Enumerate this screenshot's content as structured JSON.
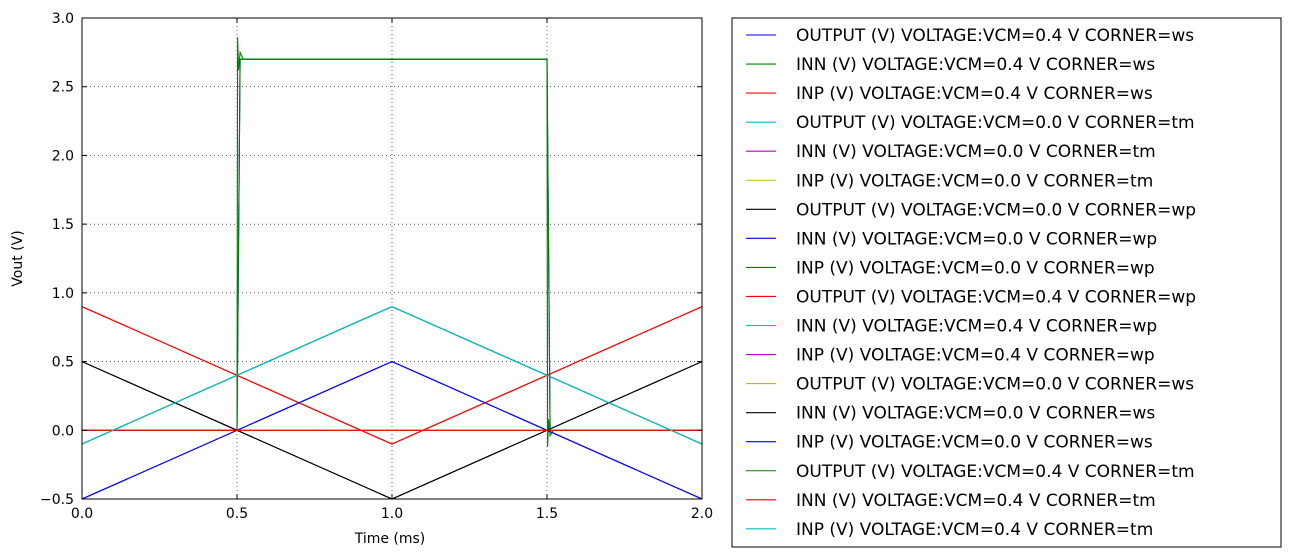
{
  "chart_data": {
    "type": "line",
    "xlabel": "Time (ms)",
    "ylabel": "Vout (V)",
    "xlim": [
      0.0,
      2.0
    ],
    "ylim": [
      -0.5,
      3.0
    ],
    "x_ticks": [
      "0.0",
      "0.5",
      "1.0",
      "1.5",
      "2.0"
    ],
    "x_tick_values": [
      0.0,
      0.5,
      1.0,
      1.5,
      2.0
    ],
    "y_ticks": [
      "−0.5",
      "0.0",
      "0.5",
      "1.0",
      "1.5",
      "2.0",
      "2.5",
      "3.0"
    ],
    "y_tick_values": [
      -0.5,
      0.0,
      0.5,
      1.0,
      1.5,
      2.0,
      2.5,
      3.0
    ],
    "grid": true,
    "legend_position": "outside-right",
    "series": [
      {
        "name": "OUTPUT (V) VOLTAGE:VCM=0.4 V CORNER=ws",
        "color": "#0000ff",
        "x": [
          0,
          0.5,
          0.51,
          1.5,
          1.51,
          2.0
        ],
        "y": [
          0.0,
          0.0,
          2.7,
          2.7,
          0.0,
          0.0
        ]
      },
      {
        "name": "INN (V) VOLTAGE:VCM=0.4 V CORNER=ws",
        "color": "#008000",
        "x": [
          0,
          0.5,
          0.502,
          0.505,
          0.51,
          0.52,
          1.5,
          1.502,
          1.505,
          1.51,
          1.52,
          2.0
        ],
        "y": [
          0.0,
          0.0,
          2.86,
          2.62,
          2.75,
          2.7,
          2.7,
          -0.12,
          0.08,
          -0.04,
          0.0,
          0.0
        ]
      },
      {
        "name": "INP (V) VOLTAGE:VCM=0.4 V CORNER=ws",
        "color": "#ff0000",
        "x": [
          0,
          1,
          2
        ],
        "y": [
          0.9,
          -0.1,
          0.9
        ]
      },
      {
        "name": "OUTPUT (V) VOLTAGE:VCM=0.0 V CORNER=tm",
        "color": "#00bfbf",
        "x": [
          0,
          1,
          2
        ],
        "y": [
          -0.1,
          0.9,
          -0.1
        ]
      },
      {
        "name": "INN (V) VOLTAGE:VCM=0.0 V CORNER=tm",
        "color": "#bf00bf",
        "x": [
          0,
          1,
          2
        ],
        "y": [
          -0.1,
          0.9,
          -0.1
        ]
      },
      {
        "name": "INP (V) VOLTAGE:VCM=0.0 V CORNER=tm",
        "color": "#bfbf00",
        "x": [
          0,
          1,
          2
        ],
        "y": [
          -0.1,
          0.9,
          -0.1
        ]
      },
      {
        "name": "OUTPUT (V) VOLTAGE:VCM=0.0 V CORNER=wp",
        "color": "#000000",
        "x": [
          0,
          1,
          2
        ],
        "y": [
          0.5,
          -0.5,
          0.5
        ]
      },
      {
        "name": "INN (V) VOLTAGE:VCM=0.0 V CORNER=wp",
        "color": "#0000ff",
        "x": [
          0,
          1,
          2
        ],
        "y": [
          -0.5,
          0.5,
          -0.5
        ]
      },
      {
        "name": "INP (V) VOLTAGE:VCM=0.0 V CORNER=wp",
        "color": "#008000",
        "x": [
          0,
          2
        ],
        "y": [
          0.0,
          0.0
        ]
      },
      {
        "name": "OUTPUT (V) VOLTAGE:VCM=0.4 V CORNER=wp",
        "color": "#ff0000",
        "x": [
          0,
          1,
          2
        ],
        "y": [
          0.9,
          -0.1,
          0.9
        ]
      },
      {
        "name": "INN (V) VOLTAGE:VCM=0.4 V CORNER=wp",
        "color": "#00bfbf",
        "x": [
          0,
          1,
          2
        ],
        "y": [
          -0.1,
          0.9,
          -0.1
        ]
      },
      {
        "name": "INP (V) VOLTAGE:VCM=0.4 V CORNER=wp",
        "color": "#bf00bf",
        "x": [
          0,
          2
        ],
        "y": [
          0.0,
          0.0
        ]
      },
      {
        "name": "OUTPUT (V) VOLTAGE:VCM=0.0 V CORNER=ws",
        "color": "#bfbf00",
        "x": [
          0,
          2
        ],
        "y": [
          0.0,
          0.0
        ]
      },
      {
        "name": "INN (V) VOLTAGE:VCM=0.0 V CORNER=ws",
        "color": "#000000",
        "x": [
          0,
          1,
          2
        ],
        "y": [
          0.5,
          -0.5,
          0.5
        ]
      },
      {
        "name": "INP (V) VOLTAGE:VCM=0.0 V CORNER=ws",
        "color": "#0000ff",
        "x": [
          0,
          1,
          2
        ],
        "y": [
          -0.5,
          0.5,
          -0.5
        ]
      },
      {
        "name": "OUTPUT (V) VOLTAGE:VCM=0.4 V CORNER=tm",
        "color": "#008000",
        "x": [
          0,
          0.5,
          0.51,
          1.5,
          1.51,
          2.0
        ],
        "y": [
          0.0,
          0.0,
          2.7,
          2.7,
          0.0,
          0.0
        ]
      },
      {
        "name": "INN (V) VOLTAGE:VCM=0.4 V CORNER=tm",
        "color": "#ff0000",
        "x": [
          0,
          2
        ],
        "y": [
          0.0,
          0.0
        ]
      },
      {
        "name": "INP (V) VOLTAGE:VCM=0.4 V CORNER=tm",
        "color": "#00bfbf",
        "x": [
          0,
          1,
          2
        ],
        "y": [
          -0.1,
          0.9,
          -0.1
        ]
      }
    ]
  }
}
